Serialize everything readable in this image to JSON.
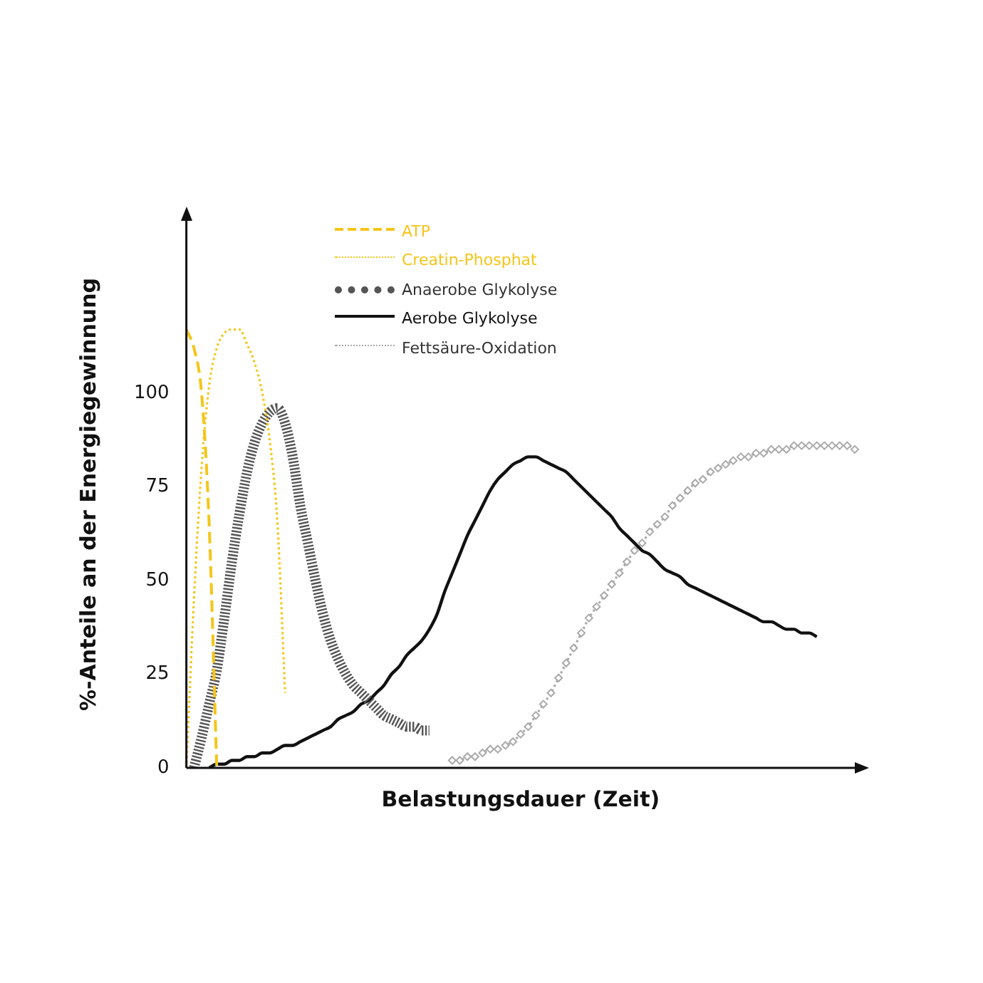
{
  "chart_data": {
    "type": "line",
    "xlabel": "Belastungsdauer (Zeit)",
    "ylabel": "%-Anteile an der Energiegewinnung",
    "categories": [
      null,
      null,
      null,
      null,
      null,
      null,
      null,
      null,
      null,
      null,
      null,
      null,
      null,
      null,
      null,
      null,
      null,
      null,
      null,
      null,
      null,
      null,
      null,
      null,
      null,
      null,
      null,
      null,
      null,
      null,
      null,
      null,
      null,
      null,
      null,
      null,
      null,
      null,
      null,
      null,
      null,
      null,
      null,
      null,
      null,
      null,
      null,
      null,
      null,
      null,
      null,
      null,
      null,
      null,
      null,
      null,
      null,
      null,
      null,
      null,
      null,
      null,
      null,
      null,
      null,
      null,
      null,
      null,
      null,
      null,
      null,
      null,
      null,
      null,
      null,
      null,
      null,
      null,
      null,
      null,
      null,
      null,
      null,
      null,
      null,
      null,
      null,
      null,
      null
    ],
    "ylim": [
      0,
      146
    ],
    "yticks": [
      0,
      25,
      50,
      75,
      100
    ],
    "grid": false,
    "legend": "top",
    "tick_labels": "y",
    "series": [
      {
        "name": "ATP",
        "color": "#f5c518",
        "line_style": "dashed",
        "marker": "none",
        "values": [
          117,
          112,
          100,
          65,
          0,
          null,
          null,
          null,
          null,
          null,
          null,
          null,
          null,
          null,
          null,
          null,
          null,
          null,
          null,
          null,
          null,
          null,
          null,
          null,
          null,
          null,
          null,
          null,
          null,
          null,
          null,
          null,
          null,
          null,
          null,
          null,
          null,
          null,
          null,
          null,
          null,
          null,
          null,
          null,
          null,
          null,
          null,
          null,
          null,
          null,
          null,
          null,
          null,
          null,
          null,
          null,
          null,
          null,
          null,
          null,
          null,
          null,
          null,
          null,
          null,
          null,
          null,
          null,
          null,
          null,
          null,
          null,
          null,
          null,
          null,
          null,
          null,
          null,
          null,
          null,
          null,
          null,
          null,
          null,
          null,
          null,
          null,
          null,
          null
        ]
      },
      {
        "name": "Creatin-Phosphat",
        "color": "#f5c518",
        "line_style": "dotted",
        "marker": "none",
        "values": [
          0,
          45,
          80,
          102,
          112,
          116,
          117,
          117,
          113,
          108,
          100,
          87,
          65,
          20,
          null,
          null,
          null,
          null,
          null,
          null,
          null,
          null,
          null,
          null,
          null,
          null,
          null,
          null,
          null,
          null,
          null,
          null,
          null,
          null,
          null,
          null,
          null,
          null,
          null,
          null,
          null,
          null,
          null,
          null,
          null,
          null,
          null,
          null,
          null,
          null,
          null,
          null,
          null,
          null,
          null,
          null,
          null,
          null,
          null,
          null,
          null,
          null,
          null,
          null,
          null,
          null,
          null,
          null,
          null,
          null,
          null,
          null,
          null,
          null,
          null,
          null,
          null,
          null,
          null,
          null,
          null,
          null,
          null,
          null,
          null,
          null,
          null,
          null,
          null
        ]
      },
      {
        "name": "Anaerobe Glykolyse",
        "color": "#555555",
        "line_style": "striped",
        "marker": "none",
        "values": [
          null,
          0,
          8,
          17,
          26,
          40,
          55,
          68,
          79,
          87,
          92,
          95,
          96,
          92,
          83,
          70,
          60,
          50,
          41,
          34,
          29,
          25,
          22,
          20,
          18,
          16,
          14,
          13,
          12,
          11,
          11,
          10,
          10,
          null,
          null,
          null,
          null,
          null,
          null,
          null,
          null,
          null,
          null,
          null,
          null,
          null,
          null,
          null,
          null,
          null,
          null,
          null,
          null,
          null,
          null,
          null,
          null,
          null,
          null,
          null,
          null,
          null,
          null,
          null,
          null,
          null,
          null,
          null,
          null,
          null,
          null,
          null,
          null,
          null,
          null,
          null,
          null,
          null,
          null,
          null,
          null,
          null,
          null,
          null,
          null,
          null,
          null,
          null,
          null
        ]
      },
      {
        "name": "Aerobe Glykolyse",
        "color": "#111111",
        "line_style": "solid",
        "marker": "none",
        "values": [
          null,
          null,
          null,
          0,
          1,
          1,
          2,
          2,
          3,
          3,
          4,
          4,
          5,
          6,
          6,
          7,
          8,
          9,
          10,
          11,
          13,
          14,
          15,
          17,
          18,
          20,
          22,
          25,
          27,
          30,
          32,
          34,
          37,
          41,
          47,
          52,
          57,
          62,
          66,
          70,
          74,
          77,
          79,
          81,
          82,
          83,
          83,
          82,
          81,
          80,
          79,
          77,
          75,
          73,
          71,
          69,
          67,
          64,
          62,
          60,
          58,
          57,
          55,
          53,
          52,
          51,
          49,
          48,
          47,
          46,
          45,
          44,
          43,
          42,
          41,
          40,
          39,
          39,
          38,
          37,
          37,
          36,
          36,
          35,
          null,
          null,
          null,
          null,
          null
        ]
      },
      {
        "name": "Fettsäure-Oxidation",
        "color": "#aaaaaa",
        "line_style": "dotted",
        "marker": "diamond",
        "values": [
          null,
          null,
          null,
          null,
          null,
          null,
          null,
          null,
          null,
          null,
          null,
          null,
          null,
          null,
          null,
          null,
          null,
          null,
          null,
          null,
          null,
          null,
          null,
          null,
          null,
          null,
          null,
          null,
          null,
          null,
          null,
          null,
          null,
          null,
          null,
          2,
          2,
          3,
          3,
          4,
          5,
          5,
          6,
          7,
          9,
          11,
          14,
          17,
          20,
          24,
          28,
          32,
          36,
          40,
          43,
          46,
          49,
          52,
          55,
          58,
          60,
          63,
          65,
          67,
          70,
          72,
          74,
          76,
          77,
          79,
          80,
          81,
          82,
          83,
          83,
          84,
          84,
          85,
          85,
          85,
          86,
          86,
          86,
          86,
          86,
          86,
          86,
          86,
          85
        ]
      }
    ]
  }
}
